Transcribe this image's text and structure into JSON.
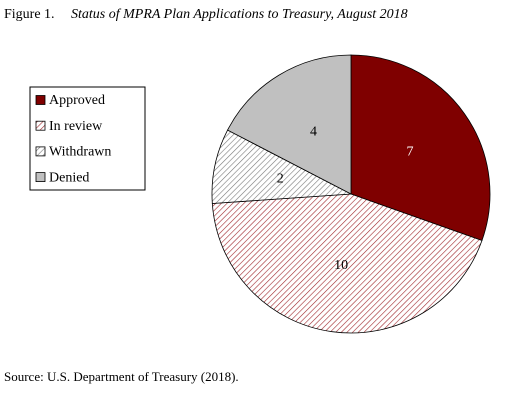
{
  "chart_data": {
    "type": "pie",
    "figure_label": "Figure 1.",
    "title": "Status of MPRA Plan Applications to Treasury, August 2018",
    "categories": [
      "Approved",
      "In review",
      "Withdrawn",
      "Denied"
    ],
    "values": [
      7,
      10,
      2,
      4
    ],
    "colors": [
      "#7f0000",
      "#a0282d",
      "#7a7a7a",
      "#c0c0c0"
    ],
    "patterns": [
      "solid",
      "hatch",
      "hatch",
      "solid"
    ],
    "start_angle": 0,
    "direction": "clockwise",
    "legend": "left",
    "source": "Source: U.S. Department of Treasury (2018)."
  }
}
